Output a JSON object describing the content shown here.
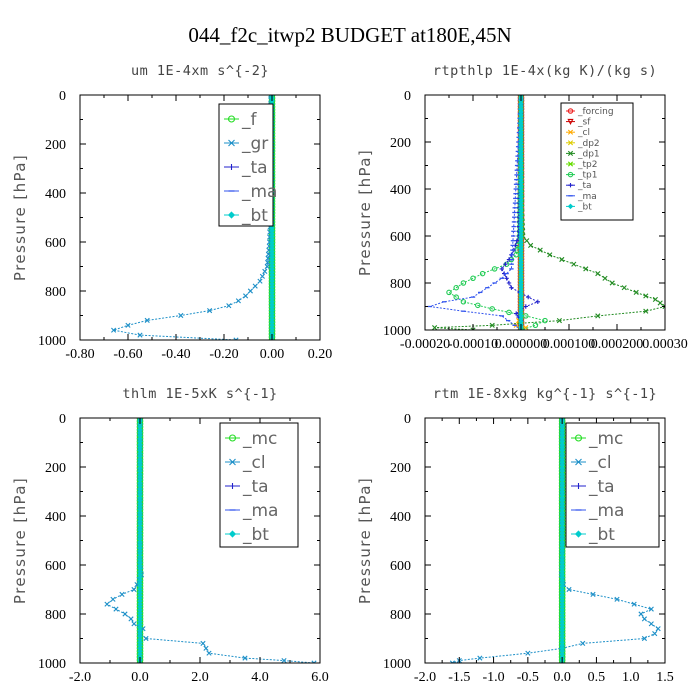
{
  "title": "044_f2c_itwp2  BUDGET at180E,45N",
  "chart_data": [
    {
      "type": "line",
      "subtitle": "um  1E-4xm s^{-2}",
      "ylabel": "Pressure [hPa]",
      "xlim": [
        -0.8,
        0.2
      ],
      "ylim": [
        1000,
        0
      ],
      "xticks": [
        "-0.80",
        "-0.60",
        "-0.40",
        "-0.20",
        "0.00",
        "0.20"
      ],
      "xtick_values": [
        -0.8,
        -0.6,
        -0.4,
        -0.2,
        0.0,
        0.2
      ],
      "yticks": [
        "0",
        "200",
        "400",
        "600",
        "800",
        "1000"
      ],
      "ytick_values": [
        0,
        200,
        400,
        600,
        800,
        1000
      ],
      "legend": {
        "placement": "top-right",
        "size": "large"
      },
      "series": [
        {
          "name": "_f",
          "color": "#22dd22",
          "marker": "circle",
          "y": [
            0,
            1000
          ],
          "x": [
            0.0,
            0.0
          ],
          "fill": true
        },
        {
          "name": "_gr",
          "color": "#1e90c8",
          "marker": "x",
          "y": [
            0,
            100,
            200,
            300,
            400,
            500,
            600,
            650,
            700,
            720,
            740,
            760,
            780,
            800,
            820,
            840,
            860,
            880,
            900,
            920,
            940,
            960,
            980,
            1000
          ],
          "x": [
            -0.005,
            -0.005,
            -0.005,
            -0.005,
            -0.006,
            -0.008,
            -0.01,
            -0.015,
            -0.02,
            -0.03,
            -0.04,
            -0.05,
            -0.07,
            -0.09,
            -0.11,
            -0.14,
            -0.18,
            -0.26,
            -0.38,
            -0.52,
            -0.6,
            -0.66,
            -0.55,
            -0.15
          ]
        },
        {
          "name": "_ta",
          "color": "#2222cc",
          "marker": "plus",
          "y": [
            0,
            1000
          ],
          "x": [
            0.0,
            0.0
          ]
        },
        {
          "name": "_ma",
          "color": "#3355ee",
          "marker": "dash",
          "y": [
            0,
            1000
          ],
          "x": [
            0.0,
            0.0
          ]
        },
        {
          "name": "_bt",
          "color": "#00cccc",
          "marker": "diamond",
          "y": [
            0,
            1000
          ],
          "x": [
            0.0,
            0.0
          ]
        }
      ]
    },
    {
      "type": "line",
      "subtitle": "rtpthlp  1E-4x(kg K)/(kg s)",
      "ylabel": "Pressure [hPa]",
      "xlim": [
        -0.0002,
        0.0003
      ],
      "ylim": [
        1000,
        0
      ],
      "xticks": [
        "-0.00020",
        "-0.00010",
        "0.000000",
        "0.000100",
        "0.000200",
        "0.00030"
      ],
      "xtick_values": [
        -0.0002,
        -0.0001,
        0.0,
        0.0001,
        0.0002,
        0.0003
      ],
      "yticks": [
        "0",
        "200",
        "400",
        "600",
        "800",
        "1000"
      ],
      "ytick_values": [
        0,
        200,
        400,
        600,
        800,
        1000
      ],
      "legend": {
        "placement": "top-right",
        "size": "small"
      },
      "series": [
        {
          "name": "_forcing",
          "color": "#ee2222",
          "marker": "circle",
          "y": [
            0,
            1000
          ],
          "x": [
            0.0,
            0.0
          ],
          "thick": true
        },
        {
          "name": "_sf",
          "color": "#cc0000",
          "marker": "triangle",
          "y": [
            0,
            1000
          ],
          "x": [
            0.0,
            0.0
          ]
        },
        {
          "name": "_cl",
          "color": "#ffaa00",
          "marker": "x",
          "y": [
            0,
            940,
            960,
            980,
            990,
            1000
          ],
          "x": [
            0.0,
            0.0,
            -5e-06,
            -1e-05,
            1e-05,
            0.0
          ]
        },
        {
          "name": "_dp2",
          "color": "#ddcc00",
          "marker": "x",
          "y": [
            0,
            1000
          ],
          "x": [
            0.0,
            0.0
          ]
        },
        {
          "name": "_dp1",
          "color": "#228b22",
          "marker": "x",
          "y": [
            0,
            500,
            600,
            640,
            680,
            720,
            760,
            800,
            840,
            870,
            900,
            920,
            940,
            960,
            980,
            990,
            1000
          ],
          "x": [
            0.0,
            2e-06,
            4e-06,
            2e-05,
            6e-05,
            0.00011,
            0.00016,
            0.00019,
            0.00024,
            0.00028,
            0.0003,
            0.00026,
            0.00016,
            8e-05,
            -6e-05,
            -0.00018,
            -0.0001
          ]
        },
        {
          "name": "_tp2",
          "color": "#66dd00",
          "marker": "x",
          "y": [
            0,
            1000
          ],
          "x": [
            0.0,
            0.0
          ]
        },
        {
          "name": "_tp1",
          "color": "#22cc55",
          "marker": "circle",
          "y": [
            0,
            600,
            680,
            720,
            760,
            800,
            840,
            880,
            910,
            940,
            960,
            980,
            1000
          ],
          "x": [
            0.0,
            -3e-06,
            -1e-05,
            -3e-05,
            -8e-05,
            -0.00012,
            -0.00015,
            -0.00012,
            -6e-05,
            1e-05,
            5e-05,
            3e-05,
            0.0
          ]
        },
        {
          "name": "_ta",
          "color": "#2222cc",
          "marker": "plus",
          "y": [
            0,
            600,
            660,
            700,
            740,
            780,
            820,
            860,
            880,
            900,
            930,
            960,
            1000
          ],
          "x": [
            0.0,
            -5e-06,
            -1.5e-05,
            -2.5e-05,
            -4e-05,
            -3e-05,
            -2e-05,
            1.5e-05,
            3.5e-05,
            1e-05,
            -1e-05,
            0.0,
            0.0
          ]
        },
        {
          "name": "_ma",
          "color": "#3355ee",
          "marker": "dash",
          "y": [
            0,
            740,
            780,
            820,
            860,
            880,
            900,
            920,
            940,
            1000
          ],
          "x": [
            0.0,
            -2e-05,
            -4e-05,
            -7e-05,
            -0.0001,
            -0.00016,
            -0.00019,
            -0.00012,
            -4e-05,
            0.0
          ]
        },
        {
          "name": "_bt",
          "color": "#00cccc",
          "marker": "diamond",
          "y": [
            0,
            1000
          ],
          "x": [
            0.0,
            0.0
          ]
        }
      ]
    },
    {
      "type": "line",
      "subtitle": "thlm  1E-5xK s^{-1}",
      "ylabel": "Pressure [hPa]",
      "xlim": [
        -2.0,
        6.0
      ],
      "ylim": [
        1000,
        0
      ],
      "xticks": [
        "-2.0",
        "0.0",
        "2.0",
        "4.0",
        "6.0"
      ],
      "xtick_values": [
        -2,
        0,
        2,
        4,
        6
      ],
      "yticks": [
        "0",
        "200",
        "400",
        "600",
        "800",
        "1000"
      ],
      "ytick_values": [
        0,
        200,
        400,
        600,
        800,
        1000
      ],
      "legend": {
        "placement": "top-right",
        "size": "large"
      },
      "series": [
        {
          "name": "_mc",
          "color": "#22dd22",
          "marker": "circle",
          "y": [
            0,
            1000
          ],
          "x": [
            0.0,
            0.0
          ],
          "fill": true
        },
        {
          "name": "_cl",
          "color": "#1e90c8",
          "marker": "x",
          "y": [
            0,
            600,
            640,
            680,
            700,
            720,
            740,
            760,
            780,
            800,
            820,
            840,
            860,
            880,
            900,
            920,
            940,
            960,
            980,
            990,
            1000
          ],
          "x": [
            0.0,
            0.0,
            0.05,
            -0.1,
            -0.2,
            -0.6,
            -0.9,
            -1.1,
            -0.8,
            -0.5,
            -0.3,
            -0.2,
            0.1,
            0.0,
            0.2,
            2.1,
            2.2,
            2.3,
            3.5,
            4.8,
            5.8
          ]
        },
        {
          "name": "_ta",
          "color": "#2222cc",
          "marker": "plus",
          "y": [
            0,
            1000
          ],
          "x": [
            0.0,
            0.0
          ]
        },
        {
          "name": "_ma",
          "color": "#3355ee",
          "marker": "dash",
          "y": [
            0,
            1000
          ],
          "x": [
            0.0,
            0.0
          ]
        },
        {
          "name": "_bt",
          "color": "#00cccc",
          "marker": "diamond",
          "y": [
            0,
            1000
          ],
          "x": [
            0.0,
            0.0
          ]
        }
      ]
    },
    {
      "type": "line",
      "subtitle": "rtm  1E-8xkg kg^{-1} s^{-1}",
      "ylabel": "Pressure [hPa]",
      "xlim": [
        -2.0,
        1.5
      ],
      "ylim": [
        1000,
        0
      ],
      "xticks": [
        "-2.0",
        "-1.5",
        "-1.0",
        "-0.5",
        "0.0",
        "0.5",
        "1.0",
        "1.5"
      ],
      "xtick_values": [
        -2.0,
        -1.5,
        -1.0,
        -0.5,
        0.0,
        0.5,
        1.0,
        1.5
      ],
      "yticks": [
        "0",
        "200",
        "400",
        "600",
        "800",
        "1000"
      ],
      "ytick_values": [
        0,
        200,
        400,
        600,
        800,
        1000
      ],
      "legend": {
        "placement": "top-right",
        "size": "large"
      },
      "series": [
        {
          "name": "_mc",
          "color": "#22dd22",
          "marker": "circle",
          "y": [
            0,
            1000
          ],
          "x": [
            0.0,
            0.0
          ],
          "fill": true
        },
        {
          "name": "_cl",
          "color": "#1e90c8",
          "marker": "x",
          "y": [
            0,
            600,
            640,
            680,
            700,
            720,
            740,
            760,
            780,
            800,
            820,
            840,
            860,
            880,
            900,
            920,
            940,
            960,
            980,
            990,
            1000
          ],
          "x": [
            0.0,
            0.0,
            -0.01,
            0.02,
            0.1,
            0.45,
            0.8,
            1.05,
            1.3,
            1.15,
            1.2,
            1.3,
            1.4,
            1.35,
            1.2,
            0.3,
            0.0,
            -0.5,
            -1.2,
            -1.5,
            -1.6
          ]
        },
        {
          "name": "_ta",
          "color": "#2222cc",
          "marker": "plus",
          "y": [
            0,
            1000
          ],
          "x": [
            0.0,
            0.0
          ]
        },
        {
          "name": "_ma",
          "color": "#3355ee",
          "marker": "dash",
          "y": [
            0,
            1000
          ],
          "x": [
            0.0,
            0.0
          ]
        },
        {
          "name": "_bt",
          "color": "#00cccc",
          "marker": "diamond",
          "y": [
            0,
            1000
          ],
          "x": [
            0.0,
            0.0
          ]
        }
      ]
    }
  ]
}
